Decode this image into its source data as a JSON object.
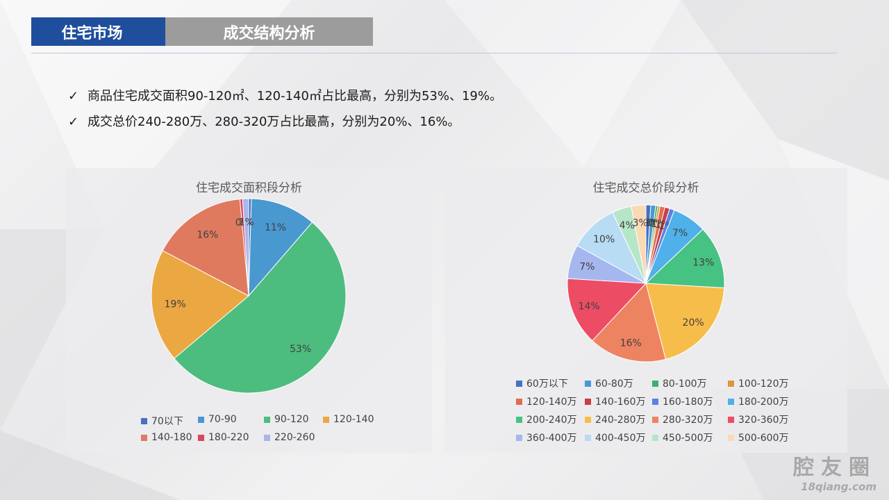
{
  "header": {
    "section": "住宅市场",
    "title": "成交结构分析"
  },
  "bullets": [
    {
      "icon": "check-icon",
      "text": "商品住宅成交面积90-120㎡、120-140㎡占比最高，分别为53%、19%。"
    },
    {
      "icon": "check-icon",
      "text": "成交总价240-280万、280-320万占比最高，分别为20%、16%。"
    }
  ],
  "chart_data": [
    {
      "type": "pie",
      "title": "住宅成交面积段分析",
      "legend_position": "bottom",
      "slices": [
        {
          "label": "70以下",
          "value": 0,
          "color": "#4472c4"
        },
        {
          "label": "70-90",
          "value": 11,
          "color": "#4a98d0"
        },
        {
          "label": "90-120",
          "value": 53,
          "color": "#4dbd7f"
        },
        {
          "label": "120-140",
          "value": 19,
          "color": "#eba742"
        },
        {
          "label": "140-180",
          "value": 16,
          "color": "#e07a5f"
        },
        {
          "label": "180-220",
          "value": 0,
          "color": "#d9475b"
        },
        {
          "label": "220-260",
          "value": 1,
          "color": "#a9b6e8"
        }
      ]
    },
    {
      "type": "pie",
      "title": "住宅成交总价段分析",
      "legend_position": "bottom",
      "slices": [
        {
          "label": "60万以下",
          "value": 1,
          "color": "#4472c4"
        },
        {
          "label": "60-80万",
          "value": 1,
          "color": "#4a98d0"
        },
        {
          "label": "80-100万",
          "value": 0,
          "color": "#3daf74"
        },
        {
          "label": "100-120万",
          "value": 0,
          "color": "#e0953b"
        },
        {
          "label": "120-140万",
          "value": 1,
          "color": "#dd6e52"
        },
        {
          "label": "140-160万",
          "value": 1,
          "color": "#c93e48"
        },
        {
          "label": "160-180万",
          "value": 1,
          "color": "#5b82e3"
        },
        {
          "label": "180-200万",
          "value": 7,
          "color": "#4fb0ea"
        },
        {
          "label": "200-240万",
          "value": 13,
          "color": "#46c283"
        },
        {
          "label": "240-280万",
          "value": 20,
          "color": "#f7bd4a"
        },
        {
          "label": "280-320万",
          "value": 16,
          "color": "#ee8361"
        },
        {
          "label": "320-360万",
          "value": 14,
          "color": "#ec4d64"
        },
        {
          "label": "360-400万",
          "value": 7,
          "color": "#a6b7ef"
        },
        {
          "label": "400-450万",
          "value": 10,
          "color": "#b7dcf3"
        },
        {
          "label": "450-500万",
          "value": 4,
          "color": "#b6e6c8"
        },
        {
          "label": "500-600万",
          "value": 3,
          "color": "#fad9b5"
        }
      ]
    }
  ],
  "watermark": {
    "line1": "腔友圈",
    "line2": "18qiang.com"
  }
}
